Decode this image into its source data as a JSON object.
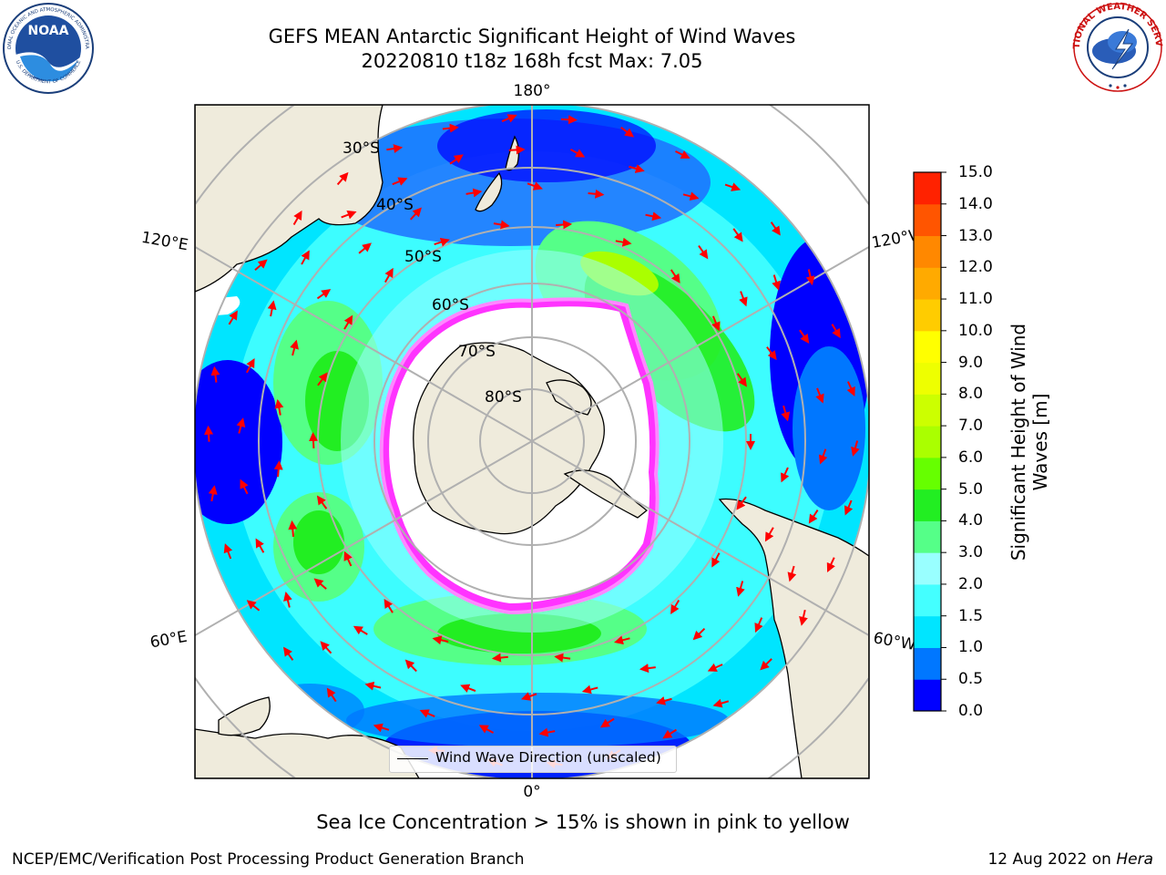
{
  "title_line1": "GEFS MEAN Antarctic Significant Height of Wind Waves",
  "title_line2": "20220810 t18z 168h fcst   Max: 7.05",
  "map": {
    "projection": "south-polar-stereographic",
    "latitude_labels": [
      "30°S",
      "40°S",
      "50°S",
      "60°S",
      "70°S",
      "80°S"
    ],
    "longitude_labels": {
      "top": "180°",
      "bottom": "0°",
      "upper_left": "120°E",
      "upper_right": "120°W",
      "lower_left": "60°E",
      "lower_right": "60°W"
    },
    "land_color": "#efebdc",
    "sea_ice_color": "#ff33ff",
    "arrow_color": "#ff0000",
    "legend_label": "Wind Wave Direction (unscaled)"
  },
  "colorbar": {
    "label": "Significant Height of Wind Waves [m]",
    "ticks": [
      "0.0",
      "0.5",
      "1.0",
      "1.5",
      "2.0",
      "3.0",
      "4.0",
      "5.0",
      "6.0",
      "7.0",
      "8.0",
      "9.0",
      "10.0",
      "11.0",
      "12.0",
      "13.0",
      "14.0",
      "15.0"
    ],
    "colors": [
      "#0000ff",
      "#0077ff",
      "#00e5ff",
      "#44ffff",
      "#99ffff",
      "#55ff88",
      "#22ee22",
      "#66ff00",
      "#aaff00",
      "#ccff00",
      "#eeff00",
      "#ffff00",
      "#ffcc00",
      "#ffaa00",
      "#ff8800",
      "#ff5500",
      "#ff2200"
    ]
  },
  "subcaption": "Sea Ice Concentration > 15% is shown in pink to yellow",
  "footer": {
    "left": "NCEP/EMC/Verification Post Processing Product Generation Branch",
    "right_date": "12 Aug 2022 on ",
    "right_host": "Hera"
  },
  "logos": {
    "noaa_text": "NOAA",
    "noaa_ring_text": "NATIONAL OCEANIC AND ATMOSPHERIC ADMINISTRATION",
    "noaa_ring_bottom": "U.S. DEPARTMENT OF COMMERCE",
    "nws_ring_text": "NATIONAL WEATHER SERVICE"
  }
}
